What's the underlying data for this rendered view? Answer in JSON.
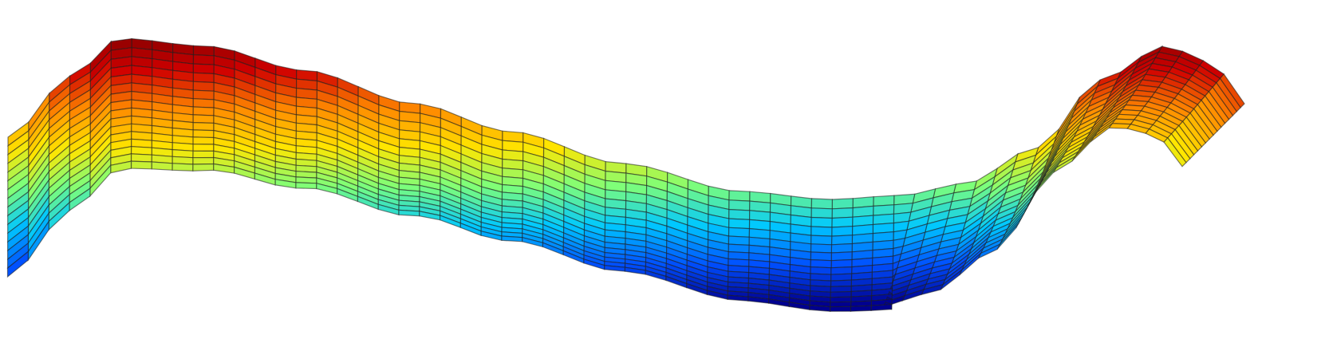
{
  "surface": {
    "colormap": "jet",
    "colormap_stops": [
      "#00008f",
      "#0050ff",
      "#00c8ff",
      "#7dff7a",
      "#ffe600",
      "#ff8a00",
      "#d00000",
      "#800000"
    ],
    "grid_line_color": "#1e1e1e",
    "background": "#ffffff",
    "shading": "faceted",
    "axes_visible": false
  }
}
